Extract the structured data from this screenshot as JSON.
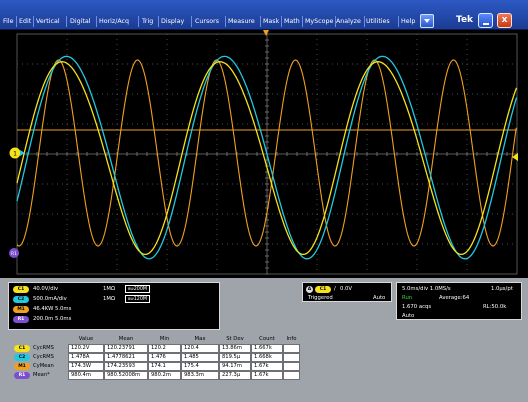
{
  "menu": {
    "items": [
      "File",
      "Edit",
      "Vertical",
      "Digital",
      "Horiz/Acq",
      "Trig",
      "Display",
      "Cursors",
      "Measure",
      "Mask",
      "Math",
      "MyScope",
      "Analyze",
      "Utilities",
      "Help"
    ],
    "brand": "Tek",
    "close_glyph": "x"
  },
  "markers": {
    "ch1": "1",
    "ref": "R1"
  },
  "channels": [
    {
      "badge": "C1",
      "scale": "40.0V/div",
      "imp": "1MΩ",
      "bw": "200M",
      "color": "#f5e11c"
    },
    {
      "badge": "C2",
      "scale": "500.0mA/div",
      "imp": "1MΩ",
      "bw": "120M",
      "color": "#21c8e0"
    },
    {
      "badge": "M1",
      "scale": "46.4KW  5.0ms",
      "color": "#f0a020"
    },
    {
      "badge": "R1",
      "scale": "200.0m  5.0ms",
      "color": "#7b4fd0"
    }
  ],
  "bw_icon": "BW",
  "trigger": {
    "mode_badge": "A",
    "channel": "C1",
    "slope": "/",
    "level": "0.0V",
    "state": "Triggered",
    "sweep": "Auto"
  },
  "acquisition": {
    "timebase": "5.0ms/div  1.0MS/s",
    "resolution": "1.0µs/pt",
    "run_state": "Run",
    "average": "Average:64",
    "acqs": "1.670 acqs",
    "record_length": "RL:50.0k",
    "mode": "Auto"
  },
  "measurements": {
    "headers": [
      "Value",
      "Mean",
      "Min",
      "Max",
      "St Dev",
      "Count",
      "Info"
    ],
    "rows": [
      {
        "badge": "C1",
        "name": "CycRMS",
        "values": [
          "120.2V",
          "120.23791",
          "120.2",
          "120.4",
          "13.86m",
          "1.667k",
          ""
        ]
      },
      {
        "badge": "C2",
        "name": "CycRMS",
        "values": [
          "1.478A",
          "1.4778621",
          "1.476",
          "1.485",
          "819.5µ",
          "1.668k",
          ""
        ]
      },
      {
        "badge": "M1",
        "name": "CyMean",
        "values": [
          "174.3W",
          "174.23593",
          "174.1",
          "175.4",
          "94.17m",
          "1.67k",
          ""
        ]
      },
      {
        "badge": "R1",
        "name": "Mean*",
        "values": [
          "980.4m",
          "980.52008m",
          "980.2m",
          "983.3m",
          "227.3µ",
          "1.67k",
          ""
        ]
      }
    ]
  }
}
